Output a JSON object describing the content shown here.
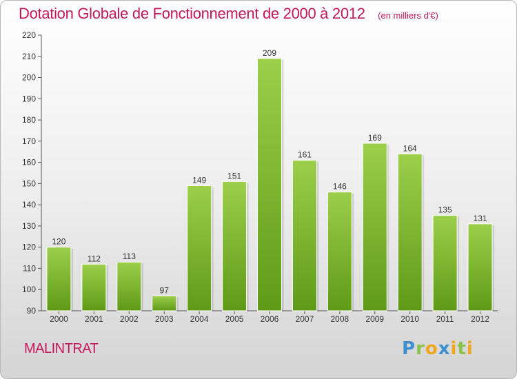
{
  "header": {
    "title": "Dotation Globale de Fonctionnement de 2000 à 2012",
    "unit": "(en milliers d'€)"
  },
  "footer": {
    "commune": "MALINTRAT",
    "logo_text": "Proxiti"
  },
  "colors": {
    "bar_top": "#9ccf4a",
    "bar_bottom": "#5f9a17",
    "title": "#c2185b"
  },
  "chart_data": {
    "type": "bar",
    "title": "Dotation Globale de Fonctionnement de 2000 à 2012",
    "subtitle": "(en milliers d'€)",
    "xlabel": "",
    "ylabel": "",
    "categories": [
      "2000",
      "2001",
      "2002",
      "2003",
      "2004",
      "2005",
      "2006",
      "2007",
      "2008",
      "2009",
      "2010",
      "2011",
      "2012"
    ],
    "values": [
      120,
      112,
      113,
      97,
      149,
      151,
      209,
      161,
      146,
      169,
      164,
      135,
      131
    ],
    "ylim": [
      90,
      220
    ],
    "yticks": [
      90,
      100,
      110,
      120,
      130,
      140,
      150,
      160,
      170,
      180,
      190,
      200,
      210,
      220
    ],
    "grid": false,
    "data_labels": true
  }
}
